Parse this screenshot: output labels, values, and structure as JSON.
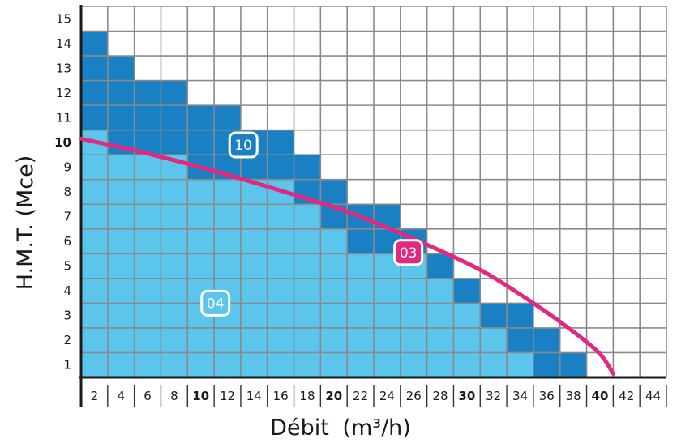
{
  "chart_data": {
    "type": "area",
    "xlabel": "Débit",
    "xlabel_unit": "(m³/h)",
    "ylabel": "H.M.T. (Mce)",
    "x_ticks": [
      "2",
      "4",
      "6",
      "8",
      "10",
      "12",
      "14",
      "16",
      "18",
      "20",
      "22",
      "24",
      "26",
      "28",
      "30",
      "32",
      "34",
      "36",
      "38",
      "40",
      "42",
      "44"
    ],
    "x_bold_ticks": [
      "10",
      "20",
      "30",
      "40"
    ],
    "y_ticks": [
      "1",
      "2",
      "3",
      "4",
      "5",
      "6",
      "7",
      "8",
      "9",
      "10",
      "11",
      "12",
      "13",
      "14",
      "15"
    ],
    "y_bold_ticks": [
      "10"
    ],
    "xlim": [
      0,
      44
    ],
    "ylim": [
      0,
      15
    ],
    "grid": true,
    "colors": {
      "area_04": "#5bc5ec",
      "area_10": "#1a80c4",
      "curve_03": "#e2287f",
      "grid": "#8a8a8a",
      "axis": "#1a1a1a"
    },
    "series": [
      {
        "name": "04",
        "type": "stepped-area",
        "x_end": [
          2,
          8,
          12,
          16,
          18,
          20,
          24,
          26,
          28,
          30,
          32,
          34
        ],
        "heights": [
          10,
          9,
          8,
          8,
          7,
          6,
          5,
          5,
          4,
          3,
          2,
          1
        ]
      },
      {
        "name": "10",
        "type": "stepped-area",
        "x_end": [
          2,
          4,
          8,
          12,
          16,
          18,
          20,
          24,
          26,
          28,
          30,
          34,
          36,
          38
        ],
        "heights": [
          14,
          13,
          12,
          11,
          10,
          9,
          8,
          7,
          6,
          5,
          4,
          3,
          2,
          1
        ]
      },
      {
        "name": "03",
        "type": "line",
        "points": [
          [
            0,
            9.65
          ],
          [
            5,
            9.05
          ],
          [
            10,
            8.35
          ],
          [
            15,
            7.55
          ],
          [
            20,
            6.7
          ],
          [
            25,
            5.6
          ],
          [
            30,
            4.35
          ],
          [
            34,
            3.0
          ],
          [
            37,
            1.85
          ],
          [
            39,
            0.95
          ],
          [
            40,
            0.15
          ]
        ]
      }
    ],
    "badges": [
      {
        "label": "04",
        "x": 10.1,
        "y": 3.0,
        "fill": "#5bc5ec"
      },
      {
        "label": "10",
        "x": 12.2,
        "y": 9.4,
        "fill": "#1a80c4"
      },
      {
        "label": "03",
        "x": 24.6,
        "y": 5.05,
        "fill": "#e2287f"
      }
    ]
  }
}
